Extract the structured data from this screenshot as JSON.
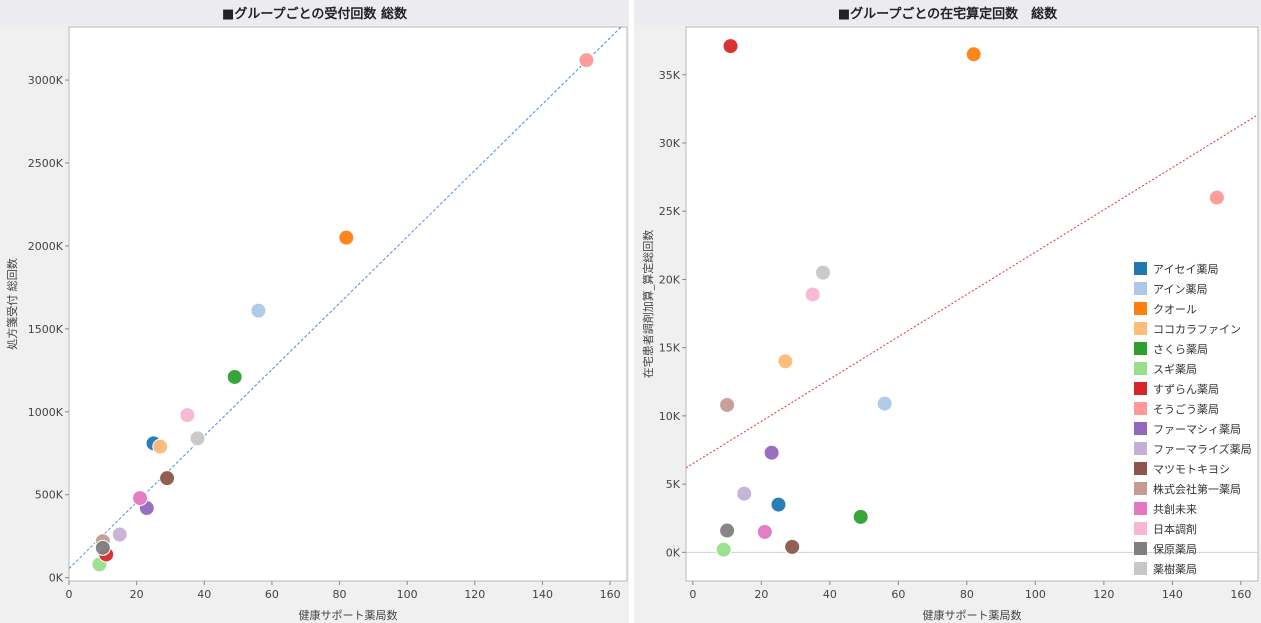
{
  "chart_data": [
    {
      "type": "scatter",
      "title": "■グループごとの受付回数 総数",
      "xlabel": "健康サポート薬局数",
      "ylabel": "処方箋受付 総回数",
      "xlim": [
        0,
        165
      ],
      "ylim": [
        -20000,
        3320000
      ],
      "xticks": [
        0,
        20,
        40,
        60,
        80,
        100,
        120,
        140,
        160
      ],
      "yticks": [
        0,
        500000,
        1000000,
        1500000,
        2000000,
        2500000,
        3000000
      ],
      "ytick_labels": [
        "0K",
        "500K",
        "1000K",
        "1500K",
        "2000K",
        "2500K",
        "3000K"
      ],
      "trendline": {
        "color": "#4a8fd6",
        "style": "dashed",
        "intercept": 55000,
        "slope": 20000
      },
      "points": [
        {
          "name": "アイセイ薬局",
          "x": 25,
          "y": 810000
        },
        {
          "name": "アイン薬局",
          "x": 56,
          "y": 1610000
        },
        {
          "name": "クオール",
          "x": 82,
          "y": 2050000
        },
        {
          "name": "ココカラファイン",
          "x": 27,
          "y": 790000
        },
        {
          "name": "さくら薬局",
          "x": 49,
          "y": 1210000
        },
        {
          "name": "スギ薬局",
          "x": 9,
          "y": 80000
        },
        {
          "name": "すずらん薬局",
          "x": 11,
          "y": 140000
        },
        {
          "name": "そうごう薬局",
          "x": 153,
          "y": 3120000
        },
        {
          "name": "ファーマシィ薬局",
          "x": 23,
          "y": 420000
        },
        {
          "name": "ファーマライズ薬局",
          "x": 15,
          "y": 260000
        },
        {
          "name": "マツモトキヨシ",
          "x": 29,
          "y": 600000
        },
        {
          "name": "株式会社第一薬局",
          "x": 10,
          "y": 220000
        },
        {
          "name": "共創未来",
          "x": 21,
          "y": 480000
        },
        {
          "name": "日本調剤",
          "x": 35,
          "y": 980000
        },
        {
          "name": "保原薬局",
          "x": 10,
          "y": 180000
        },
        {
          "name": "薬樹薬局",
          "x": 38,
          "y": 840000
        }
      ]
    },
    {
      "type": "scatter",
      "title": "■グループごとの在宅算定回数　総数",
      "xlabel": "健康サポート薬局数",
      "ylabel": "在宅患者調剤加算_算定総回数",
      "xlim": [
        -2,
        165
      ],
      "ylim": [
        -2100,
        38500
      ],
      "xticks": [
        0,
        20,
        40,
        60,
        80,
        100,
        120,
        140,
        160
      ],
      "yticks": [
        0,
        5000,
        10000,
        15000,
        20000,
        25000,
        30000,
        35000
      ],
      "ytick_labels": [
        "0K",
        "5K",
        "10K",
        "15K",
        "20K",
        "25K",
        "30K",
        "35K"
      ],
      "trendline": {
        "color": "#e03030",
        "style": "dotted",
        "intercept": 6500,
        "slope": 155
      },
      "points": [
        {
          "name": "アイセイ薬局",
          "x": 25,
          "y": 3500
        },
        {
          "name": "アイン薬局",
          "x": 56,
          "y": 10900
        },
        {
          "name": "クオール",
          "x": 82,
          "y": 36500
        },
        {
          "name": "ココカラファイン",
          "x": 27,
          "y": 14000
        },
        {
          "name": "さくら薬局",
          "x": 49,
          "y": 2600
        },
        {
          "name": "スギ薬局",
          "x": 9,
          "y": 200
        },
        {
          "name": "すずらん薬局",
          "x": 11,
          "y": 37100
        },
        {
          "name": "そうごう薬局",
          "x": 153,
          "y": 26000
        },
        {
          "name": "ファーマシィ薬局",
          "x": 23,
          "y": 7300
        },
        {
          "name": "ファーマライズ薬局",
          "x": 15,
          "y": 4300
        },
        {
          "name": "マツモトキヨシ",
          "x": 29,
          "y": 400
        },
        {
          "name": "株式会社第一薬局",
          "x": 10,
          "y": 10800
        },
        {
          "name": "共創未来",
          "x": 21,
          "y": 1500
        },
        {
          "name": "日本調剤",
          "x": 35,
          "y": 18900
        },
        {
          "name": "保原薬局",
          "x": 10,
          "y": 1600
        },
        {
          "name": "薬樹薬局",
          "x": 38,
          "y": 20500
        }
      ]
    }
  ],
  "legend": [
    {
      "name": "アイセイ薬局",
      "color": "#1f77b4"
    },
    {
      "name": "アイン薬局",
      "color": "#aec7e8"
    },
    {
      "name": "クオール",
      "color": "#ff7f0e"
    },
    {
      "name": "ココカラファイン",
      "color": "#ffbb78"
    },
    {
      "name": "さくら薬局",
      "color": "#2ca02c"
    },
    {
      "name": "スギ薬局",
      "color": "#98df8a"
    },
    {
      "name": "すずらん薬局",
      "color": "#d62728"
    },
    {
      "name": "そうごう薬局",
      "color": "#ff9896"
    },
    {
      "name": "ファーマシィ薬局",
      "color": "#9467bd"
    },
    {
      "name": "ファーマライズ薬局",
      "color": "#c5b0d5"
    },
    {
      "name": "マツモトキヨシ",
      "color": "#8c564b"
    },
    {
      "name": "株式会社第一薬局",
      "color": "#c49c94"
    },
    {
      "name": "共創未来",
      "color": "#e377c2"
    },
    {
      "name": "日本調剤",
      "color": "#f7b6d2"
    },
    {
      "name": "保原薬局",
      "color": "#7f7f7f"
    },
    {
      "name": "薬樹薬局",
      "color": "#c7c7c7"
    }
  ]
}
